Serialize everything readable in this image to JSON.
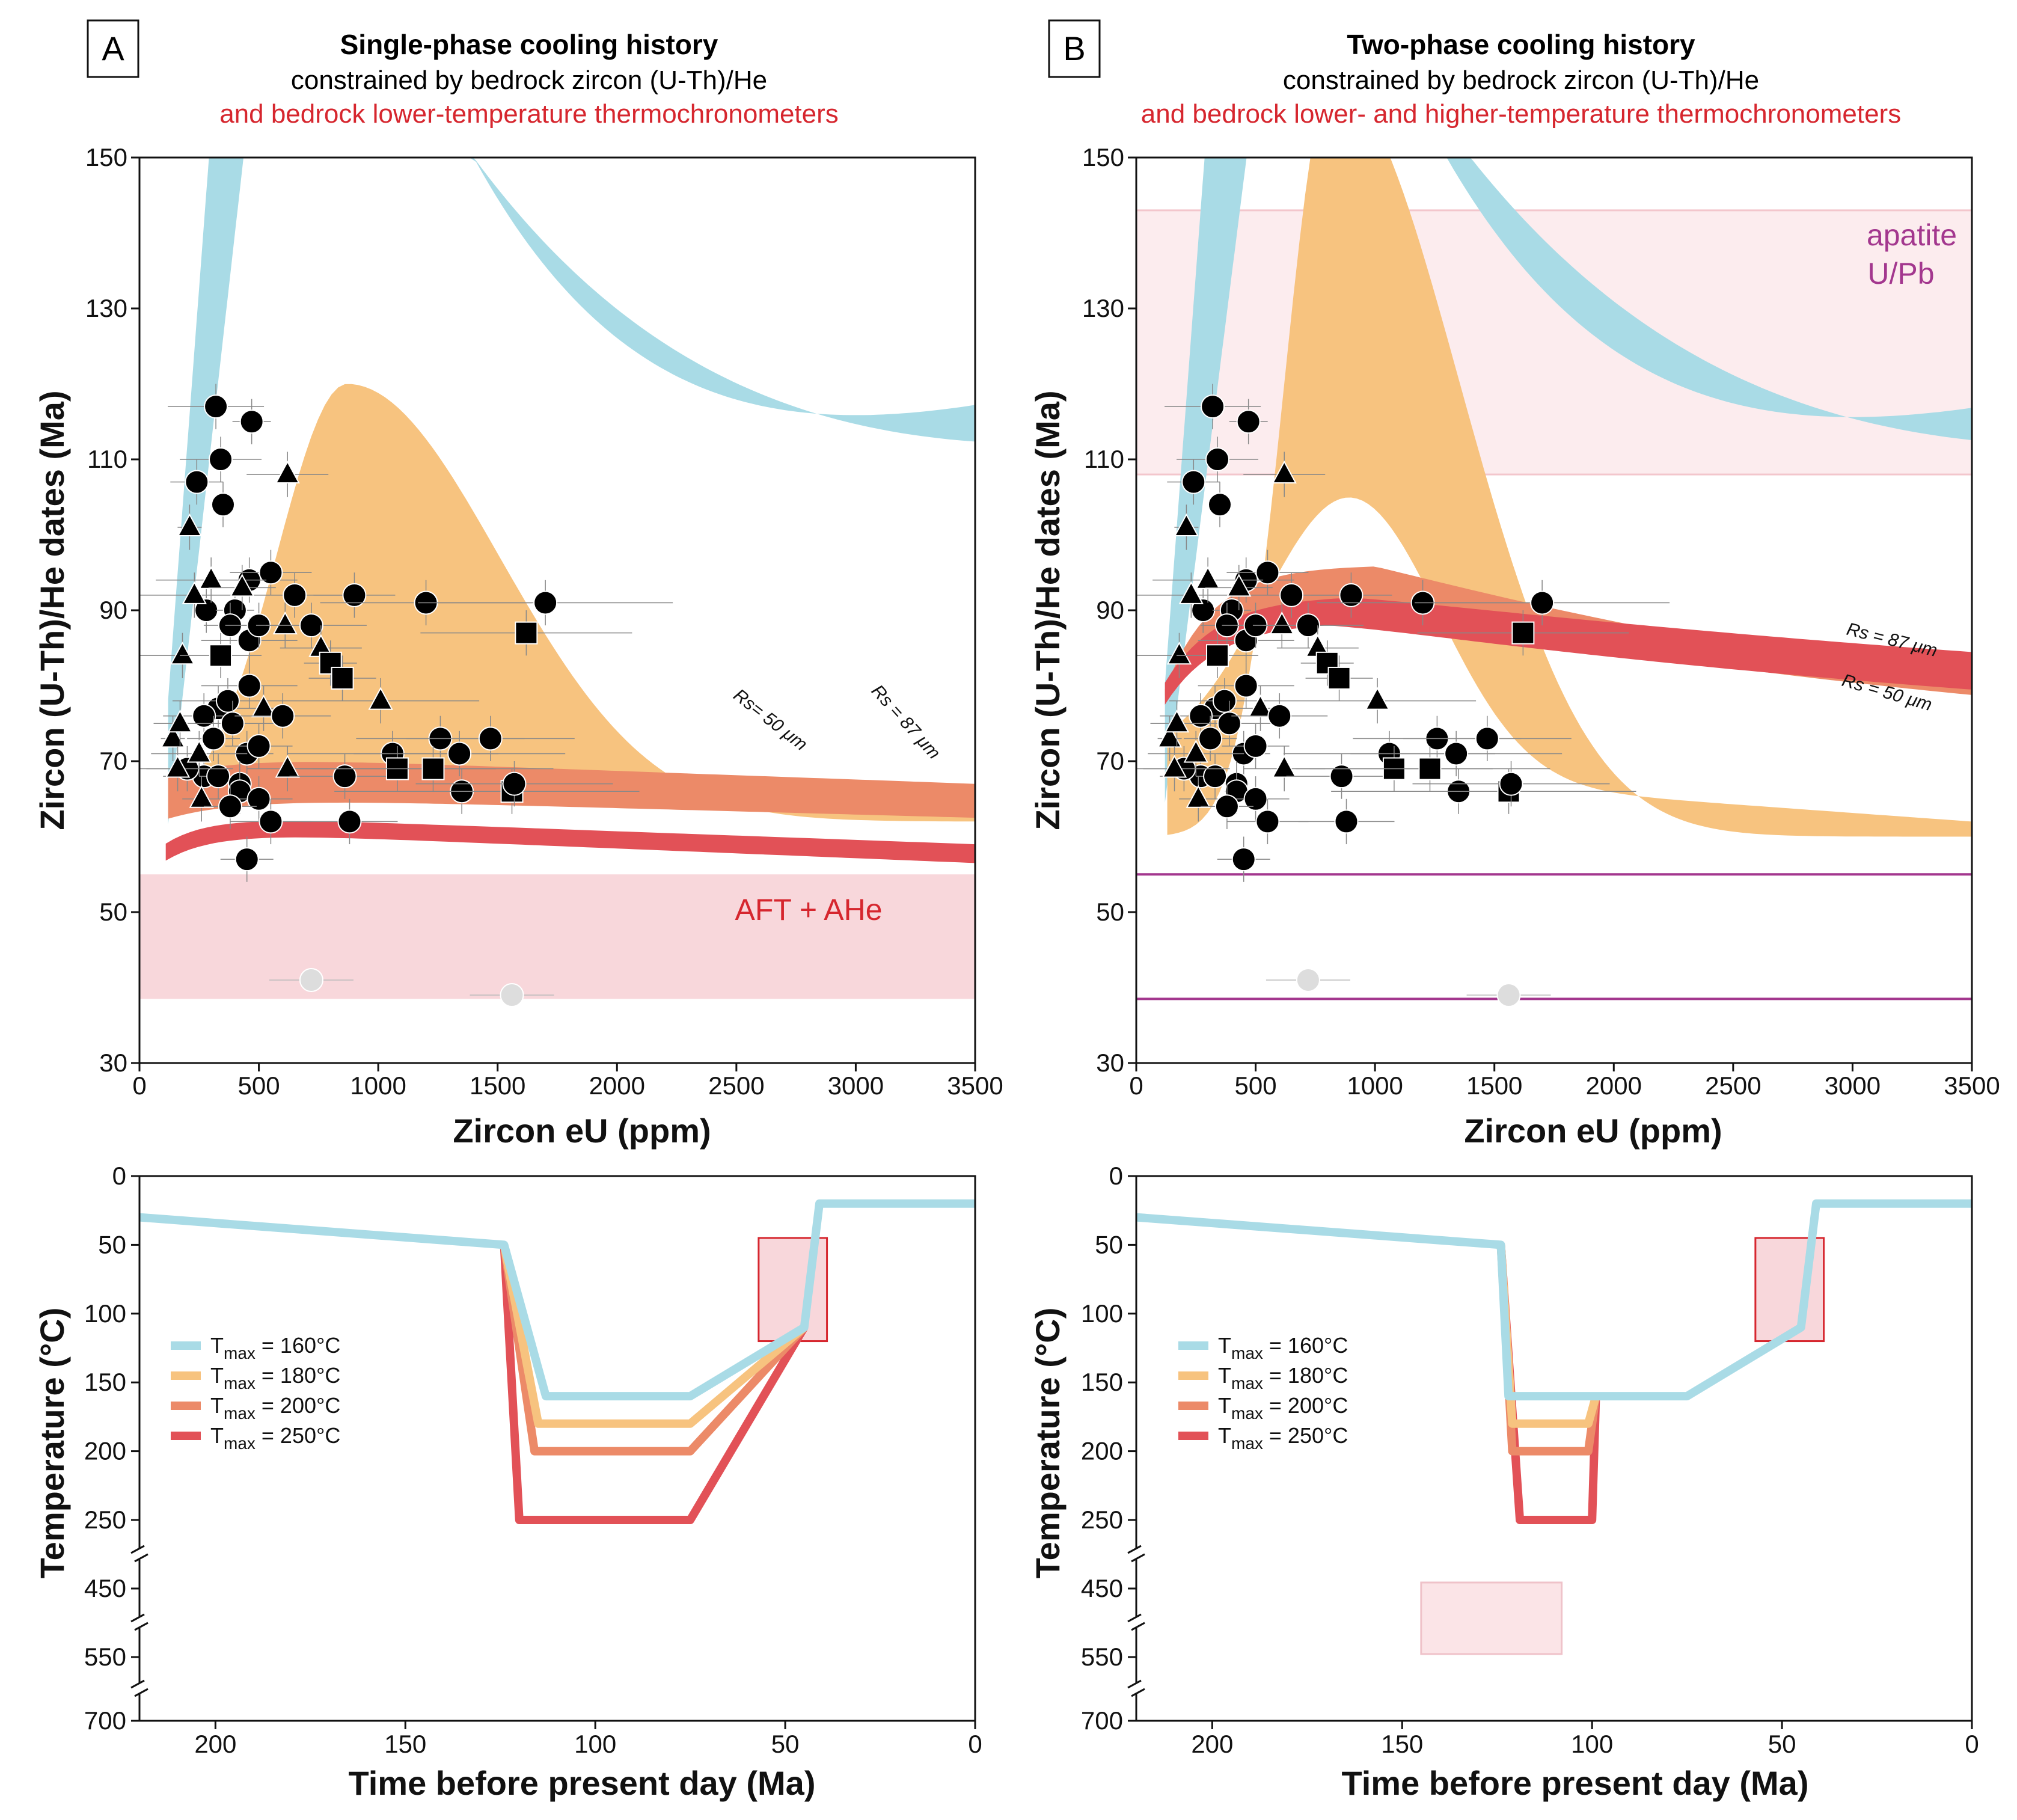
{
  "colors": {
    "blue": "#a9dbe6",
    "orange": "#f7c37f",
    "salmon": "#ec8a68",
    "red": "#e25157",
    "pink": "#f8d7db",
    "lightpink": "#fcecee",
    "magenta": "#a3378e",
    "titlered": "#d6262e"
  },
  "panels": [
    {
      "letter": "A",
      "title": "Single-phase cooling history",
      "subtitle": "constrained by bedrock zircon (U-Th)/He",
      "subtitle_red": "and bedrock lower-temperature thermochronometers",
      "box_label": "AFT + AHe"
    },
    {
      "letter": "B",
      "title": "Two-phase cooling history",
      "subtitle": "constrained by bedrock zircon (U-Th)/He",
      "subtitle_red": "and bedrock lower- and higher-temperature thermochronometers",
      "box_label_line1": "apatite",
      "box_label_line2": "U/Pb"
    }
  ],
  "rs_labels": {
    "rs50_a": "Rs= 50 μm",
    "rs87_a": "Rs = 87 μm",
    "rs50_b": "Rs = 50 μm",
    "rs87_b": "Rs = 87 μm"
  },
  "legend": [
    {
      "prefix": "T",
      "sub": "max",
      "suffix": " = 160°C",
      "color": "#a9dbe6"
    },
    {
      "prefix": "T",
      "sub": "max",
      "suffix": " = 180°C",
      "color": "#f7c37f"
    },
    {
      "prefix": "T",
      "sub": "max",
      "suffix": " = 200°C",
      "color": "#ec8a68"
    },
    {
      "prefix": "T",
      "sub": "max",
      "suffix": " = 250°C",
      "color": "#e25157"
    }
  ],
  "chart_data": [
    {
      "type": "scatter",
      "id": "A-top",
      "xlabel": "Zircon eU (ppm)",
      "ylabel": "Zircon (U-Th)/He dates (Ma)",
      "xlim": [
        0,
        3500
      ],
      "ylim": [
        30,
        150
      ],
      "xticks": [
        0,
        500,
        1000,
        1500,
        2000,
        2500,
        3000,
        3500
      ],
      "yticks": [
        30,
        50,
        70,
        90,
        110,
        130,
        150
      ],
      "constraint_box": {
        "label": "AFT + AHe",
        "ymin": 38.5,
        "ymax": 55
      }
    },
    {
      "type": "scatter",
      "id": "B-top",
      "xlabel": "Zircon eU (ppm)",
      "ylabel": "Zircon (U-Th)/He dates (Ma)",
      "xlim": [
        0,
        3500
      ],
      "ylim": [
        30,
        150
      ],
      "xticks": [
        0,
        500,
        1000,
        1500,
        2000,
        2500,
        3000,
        3500
      ],
      "yticks": [
        30,
        50,
        70,
        90,
        110,
        130,
        150
      ],
      "constraint_box": {
        "label": "apatite U/Pb",
        "ymin": 108,
        "ymax": 143
      },
      "hlines": [
        55,
        38.5
      ]
    },
    {
      "type": "line",
      "id": "A-bottom",
      "xlabel": "Time before present day (Ma)",
      "ylabel": "Temperature (°C)",
      "xticks": [
        200,
        150,
        100,
        50,
        0
      ],
      "yticks": [
        "0",
        "50",
        "100",
        "150",
        "200",
        "250",
        "450",
        "550",
        "700"
      ],
      "series": [
        {
          "name": "Tmax = 160°C",
          "points": [
            [
              220,
              30
            ],
            [
              124,
              50
            ],
            [
              113,
              160
            ],
            [
              75,
              160
            ],
            [
              45,
              110
            ],
            [
              41,
              20
            ],
            [
              0,
              20
            ]
          ]
        },
        {
          "name": "Tmax = 180°C",
          "points": [
            [
              124,
              50
            ],
            [
              115,
              180
            ],
            [
              75,
              180
            ],
            [
              45,
              110
            ]
          ]
        },
        {
          "name": "Tmax = 200°C",
          "points": [
            [
              124,
              50
            ],
            [
              116,
              200
            ],
            [
              75,
              200
            ],
            [
              45,
              110
            ]
          ]
        },
        {
          "name": "Tmax = 250°C",
          "points": [
            [
              124,
              50
            ],
            [
              120,
              250
            ],
            [
              75,
              250
            ],
            [
              45,
              110
            ]
          ]
        }
      ],
      "box": {
        "xmin": 39,
        "xmax": 57,
        "ymin": 45,
        "ymax": 120
      }
    },
    {
      "type": "line",
      "id": "B-bottom",
      "xlabel": "Time before present day (Ma)",
      "ylabel": "Temperature (°C)",
      "xticks": [
        200,
        150,
        100,
        50,
        0
      ],
      "yticks": [
        "0",
        "50",
        "100",
        "150",
        "200",
        "250",
        "450",
        "550",
        "700"
      ],
      "series": [
        {
          "name": "Tmax = 160°C",
          "points": [
            [
              220,
              30
            ],
            [
              124,
              50
            ],
            [
              122,
              160
            ],
            [
              75,
              160
            ],
            [
              45,
              110
            ],
            [
              41,
              20
            ],
            [
              0,
              20
            ]
          ]
        },
        {
          "name": "Tmax = 180°C",
          "points": [
            [
              124,
              50
            ],
            [
              121,
              180
            ],
            [
              101,
              180
            ],
            [
              99,
              160
            ]
          ]
        },
        {
          "name": "Tmax = 200°C",
          "points": [
            [
              124,
              50
            ],
            [
              121,
              200
            ],
            [
              101,
              200
            ],
            [
              99,
              160
            ]
          ]
        },
        {
          "name": "Tmax = 250°C",
          "points": [
            [
              124,
              50
            ],
            [
              119,
              250
            ],
            [
              100,
              250
            ],
            [
              99,
              160
            ]
          ]
        }
      ],
      "box": {
        "xmin": 39,
        "xmax": 57,
        "ymin": 45,
        "ymax": 120
      },
      "box2": {
        "xmin": 108,
        "xmax": 145,
        "ymin": 450,
        "ymax": 550
      }
    }
  ]
}
